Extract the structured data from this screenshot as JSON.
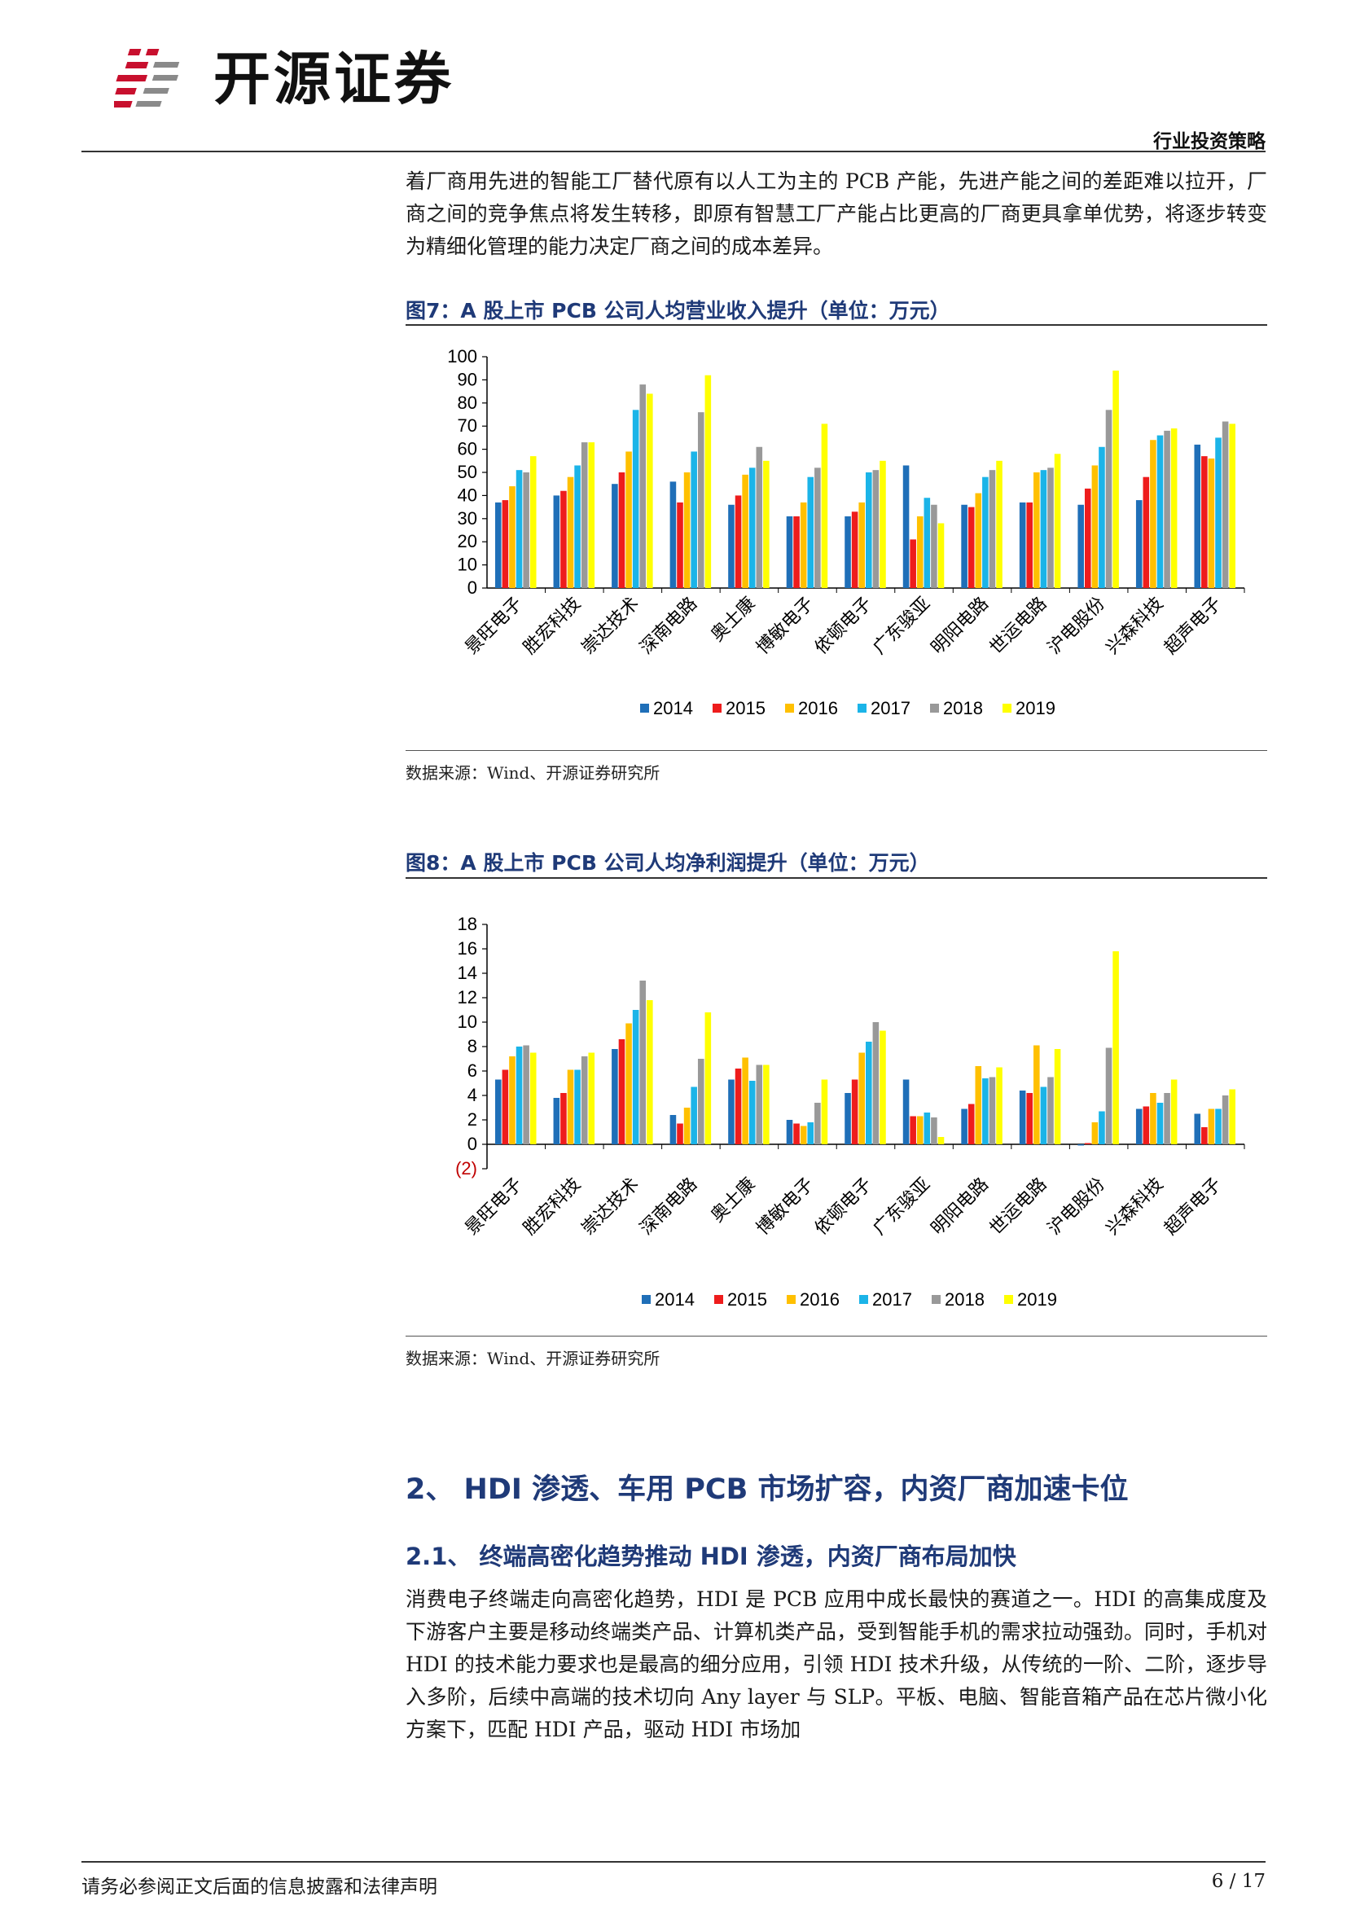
{
  "header": {
    "brand": "开源证券",
    "tag": "行业投资策略"
  },
  "intro_paragraph": "着厂商用先进的智能工厂替代原有以人工为主的 PCB 产能，先进产能之间的差距难以拉开，厂商之间的竞争焦点将发生转移，即原有智慧工厂产能占比更高的厂商更具拿单优势，将逐步转变为精细化管理的能力决定厂商之间的成本差异。",
  "figure7": {
    "caption": "图7：A 股上市 PCB 公司人均营业收入提升（单位：万元）",
    "source": "数据来源：Wind、开源证券研究所"
  },
  "figure8": {
    "caption": "图8：A 股上市 PCB 公司人均净利润提升（单位：万元）",
    "source": "数据来源：Wind、开源证券研究所"
  },
  "section_2_title": "2、 HDI 渗透、车用 PCB 市场扩容，内资厂商加速卡位",
  "section_2_1_title": "2.1、 终端高密化趋势推动 HDI 渗透，内资厂商布局加快",
  "section_2_1_paragraph": "消费电子终端走向高密化趋势，HDI 是 PCB 应用中成长最快的赛道之一。HDI 的高集成度及下游客户主要是移动终端类产品、计算机类产品，受到智能手机的需求拉动强劲。同时，手机对 HDI 的技术能力要求也是最高的细分应用，引领 HDI 技术升级，从传统的一阶、二阶，逐步导入多阶，后续中高端的技术切向 Any layer 与 SLP。平板、电脑、智能音箱产品在芯片微小化方案下，匹配 HDI 产品，驱动 HDI 市场加",
  "footer": {
    "disclaimer": "请务必参阅正文后面的信息披露和法律声明",
    "page": "6 / 17"
  },
  "chart_data": [
    {
      "type": "bar",
      "categories": [
        "景旺电子",
        "胜宏科技",
        "崇达技术",
        "深南电路",
        "奥士康",
        "博敏电子",
        "依顿电子",
        "广东骏亚",
        "明阳电路",
        "世运电路",
        "沪电股份",
        "兴森科技",
        "超声电子"
      ],
      "series": [
        {
          "name": "2014",
          "color": "#1f6fb8",
          "values": [
            37,
            40,
            45,
            46,
            36,
            31,
            31,
            53,
            36,
            37,
            36,
            38,
            62
          ]
        },
        {
          "name": "2015",
          "color": "#ee1c1c",
          "values": [
            38,
            42,
            50,
            37,
            40,
            31,
            33,
            21,
            35,
            37,
            43,
            48,
            57
          ]
        },
        {
          "name": "2016",
          "color": "#ffc000",
          "values": [
            44,
            48,
            59,
            50,
            49,
            37,
            37,
            31,
            41,
            50,
            53,
            64,
            56
          ]
        },
        {
          "name": "2017",
          "color": "#1bb4e8",
          "values": [
            51,
            53,
            77,
            59,
            52,
            48,
            50,
            39,
            48,
            51,
            61,
            66,
            65
          ]
        },
        {
          "name": "2018",
          "color": "#999999",
          "values": [
            50,
            63,
            88,
            76,
            61,
            52,
            51,
            36,
            51,
            52,
            77,
            68,
            72
          ]
        },
        {
          "name": "2019",
          "color": "#ffff00",
          "values": [
            57,
            63,
            84,
            92,
            55,
            71,
            55,
            28,
            55,
            58,
            94,
            69,
            71
          ]
        }
      ],
      "ylim": [
        0,
        100
      ],
      "yticks": [
        "0",
        "10",
        "20",
        "30",
        "40",
        "50",
        "60",
        "70",
        "80",
        "90",
        "100"
      ],
      "ytick_values": [
        0,
        10,
        20,
        30,
        40,
        50,
        60,
        70,
        80,
        90,
        100
      ],
      "legend_position": "bottom",
      "grid": false
    },
    {
      "type": "bar",
      "categories": [
        "景旺电子",
        "胜宏科技",
        "崇达技术",
        "深南电路",
        "奥士康",
        "博敏电子",
        "依顿电子",
        "广东骏亚",
        "明阳电路",
        "世运电路",
        "沪电股份",
        "兴森科技",
        "超声电子"
      ],
      "series": [
        {
          "name": "2014",
          "color": "#1f6fb8",
          "values": [
            5.3,
            3.8,
            7.8,
            2.4,
            5.3,
            2.0,
            4.2,
            5.3,
            2.9,
            4.4,
            -0.1,
            2.9,
            2.5
          ]
        },
        {
          "name": "2015",
          "color": "#ee1c1c",
          "values": [
            6.1,
            4.2,
            8.6,
            1.7,
            6.2,
            1.7,
            5.3,
            2.3,
            3.3,
            4.2,
            0.1,
            3.1,
            1.4
          ]
        },
        {
          "name": "2016",
          "color": "#ffc000",
          "values": [
            7.2,
            6.1,
            9.9,
            3.0,
            7.1,
            1.5,
            7.5,
            2.3,
            6.4,
            8.1,
            1.8,
            4.2,
            2.9
          ]
        },
        {
          "name": "2017",
          "color": "#1bb4e8",
          "values": [
            8.0,
            6.1,
            11.0,
            4.7,
            5.2,
            1.8,
            8.4,
            2.6,
            5.4,
            4.7,
            2.7,
            3.4,
            2.9
          ]
        },
        {
          "name": "2018",
          "color": "#999999",
          "values": [
            8.1,
            7.2,
            13.4,
            7.0,
            6.5,
            3.4,
            10.0,
            2.2,
            5.5,
            5.5,
            7.9,
            4.2,
            4.0
          ]
        },
        {
          "name": "2019",
          "color": "#ffff00",
          "values": [
            7.5,
            7.5,
            11.8,
            10.8,
            6.5,
            5.3,
            9.3,
            0.6,
            6.3,
            7.8,
            15.8,
            5.3,
            4.5
          ]
        }
      ],
      "ylim": [
        -2,
        18
      ],
      "yticks": [
        "(2)",
        "0",
        "2",
        "4",
        "6",
        "8",
        "10",
        "12",
        "14",
        "16",
        "18"
      ],
      "ytick_values": [
        -2,
        0,
        2,
        4,
        6,
        8,
        10,
        12,
        14,
        16,
        18
      ],
      "legend_position": "bottom",
      "grid": false
    }
  ]
}
